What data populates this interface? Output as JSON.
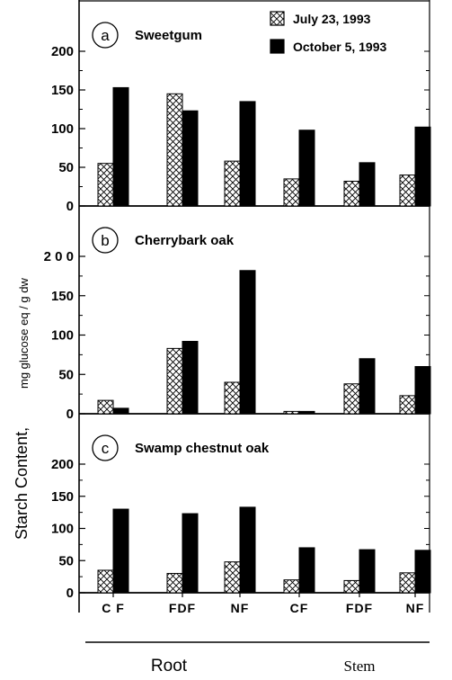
{
  "chart_data": {
    "type": "bar",
    "ylabel": "Starch Content,",
    "ylabel_unit": "mg glucose eq / g dw",
    "categories": [
      "CF",
      "FDF",
      "NF",
      "CF",
      "FDF",
      "NF"
    ],
    "category_labels": [
      "C F",
      "FDF",
      "NF",
      "CF",
      "FDF",
      "NF"
    ],
    "groups": [
      {
        "label": "Root",
        "categories": [
          "CF",
          "FDF",
          "NF"
        ]
      },
      {
        "label": "Stem",
        "categories": [
          "CF",
          "FDF",
          "NF"
        ]
      }
    ],
    "legend": {
      "placement": "top-right of panel a",
      "entries": [
        {
          "label": "July 23, 1993",
          "pattern": "crosshatch"
        },
        {
          "label": "October 5, 1993",
          "pattern": "solid-black"
        }
      ]
    },
    "grid": false,
    "panels": [
      {
        "letter": "a",
        "title": "Sweetgum",
        "ylim": [
          0,
          250
        ],
        "yticks": [
          0,
          50,
          100,
          150,
          200
        ],
        "ytick_labels": [
          "0",
          "50",
          "100",
          "150",
          "200"
        ],
        "series": [
          {
            "values": [
              55,
              145,
              58,
              35,
              32,
              40
            ]
          },
          {
            "values": [
              153,
              123,
              135,
              98,
              56,
              102
            ]
          }
        ]
      },
      {
        "letter": "b",
        "title": "Cherrybark oak",
        "ylim": [
          0,
          250
        ],
        "yticks": [
          0,
          50,
          100,
          150,
          200
        ],
        "ytick_labels": [
          "0",
          "50",
          "100",
          "150",
          "2 0 0"
        ],
        "series": [
          {
            "values": [
              17,
              83,
              40,
              3,
              38,
              23
            ]
          },
          {
            "values": [
              7,
              92,
              182,
              3,
              70,
              60
            ]
          }
        ]
      },
      {
        "letter": "c",
        "title": "Swamp  chestnut  oak",
        "ylim": [
          0,
          250
        ],
        "yticks": [
          0,
          50,
          100,
          150,
          200
        ],
        "ytick_labels": [
          "0",
          "50",
          "100",
          "150",
          "200"
        ],
        "series": [
          {
            "values": [
              35,
              30,
              48,
              20,
              19,
              31
            ]
          },
          {
            "values": [
              130,
              123,
              133,
              70,
              67,
              66
            ]
          }
        ]
      }
    ]
  }
}
